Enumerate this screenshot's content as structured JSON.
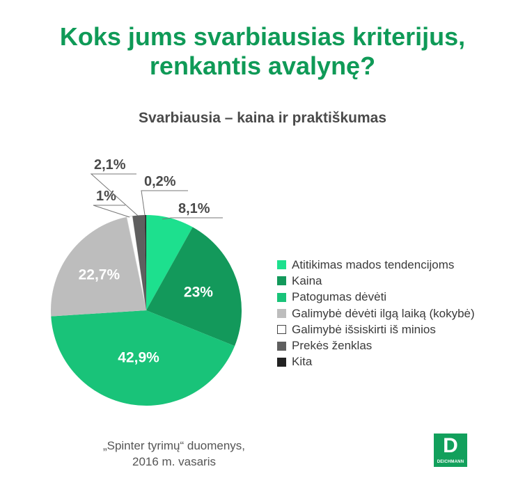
{
  "title_line1": "Koks jums svarbiausias kriterijus,",
  "title_line2": "renkantis avalynę?",
  "subtitle": "Svarbiausia –  kaina ir praktiškumas",
  "source_line1": "„Spinter tyrimų“ duomenys,",
  "source_line2": "2016 m. vasaris",
  "logo": {
    "letter": "D",
    "text": "DEICHMANN",
    "color": "#12a05c"
  },
  "colors": {
    "title": "#0f9a57"
  },
  "chart_data": {
    "type": "pie",
    "title": "Koks jums svarbiausias kriterijus, renkantis avalynę?",
    "subtitle": "Svarbiausia –  kaina ir praktiškumas",
    "legend_position": "right",
    "slices": [
      {
        "name": "Atitikimas mados tendencijoms",
        "value": 8.1,
        "label": "8,1%",
        "color": "#1de08e"
      },
      {
        "name": "Kaina",
        "value": 23.0,
        "label": "23%",
        "color": "#13995b"
      },
      {
        "name": "Patogumas dėvėti",
        "value": 42.9,
        "label": "42,9%",
        "color": "#19c379"
      },
      {
        "name": "Galimybė dėvėti ilgą laiką (kokybė)",
        "value": 22.7,
        "label": "22,7%",
        "color": "#bdbdbd"
      },
      {
        "name": "Galimybė išsiskirti iš minios",
        "value": 1.0,
        "label": "1%",
        "color": "#ffffff"
      },
      {
        "name": "Prekės ženklas",
        "value": 2.1,
        "label": "2,1%",
        "color": "#5f5f5f"
      },
      {
        "name": "Kita",
        "value": 0.2,
        "label": "0,2%",
        "color": "#222222"
      }
    ]
  }
}
